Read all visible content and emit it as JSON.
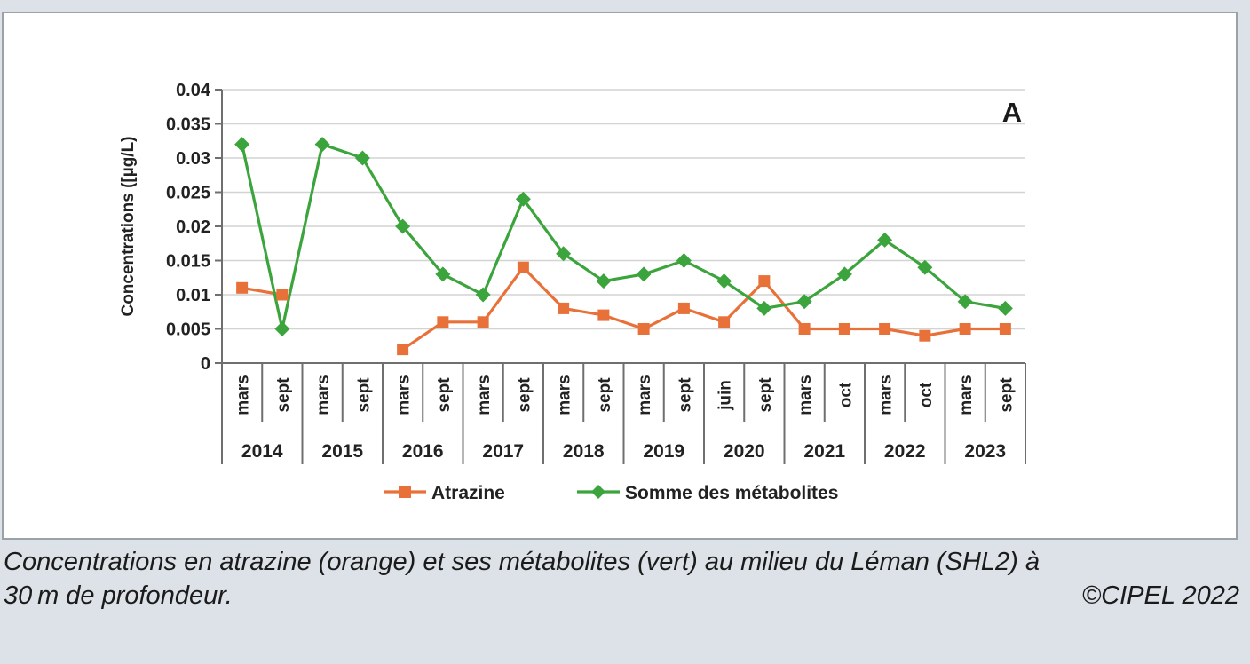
{
  "page": {
    "background": "#dce2e7",
    "panel_background": "#ffffff",
    "panel_border": "#9aa1a7"
  },
  "chart_data": {
    "type": "line",
    "panel_label": "A",
    "ylabel": "Concentrations ([µg/L)",
    "ylim": [
      0,
      0.04
    ],
    "ytick_step": 0.005,
    "ytick_labels": [
      "0",
      "0.005",
      "0.01",
      "0.015",
      "0.02",
      "0.025",
      "0.03",
      "0.035",
      "0.04"
    ],
    "grid": true,
    "legend_position": "bottom",
    "years": [
      {
        "label": "2014",
        "months": [
          "mars",
          "sept"
        ]
      },
      {
        "label": "2015",
        "months": [
          "mars",
          "sept"
        ]
      },
      {
        "label": "2016",
        "months": [
          "mars",
          "sept"
        ]
      },
      {
        "label": "2017",
        "months": [
          "mars",
          "sept"
        ]
      },
      {
        "label": "2018",
        "months": [
          "mars",
          "sept"
        ]
      },
      {
        "label": "2019",
        "months": [
          "mars",
          "sept"
        ]
      },
      {
        "label": "2020",
        "months": [
          "juin",
          "sept"
        ]
      },
      {
        "label": "2021",
        "months": [
          "mars",
          "oct"
        ]
      },
      {
        "label": "2022",
        "months": [
          "mars",
          "oct"
        ]
      },
      {
        "label": "2023",
        "months": [
          "mars",
          "sept"
        ]
      }
    ],
    "series": [
      {
        "name": "Atrazine",
        "color": "#e8713a",
        "marker": "square",
        "values": [
          0.011,
          0.01,
          null,
          null,
          0.002,
          0.006,
          0.006,
          0.014,
          0.008,
          0.007,
          0.005,
          0.008,
          0.006,
          0.012,
          0.005,
          0.005,
          0.005,
          0.004,
          0.005,
          0.005
        ]
      },
      {
        "name": "Somme des métabolites",
        "color": "#3ca43c",
        "marker": "diamond",
        "values": [
          0.032,
          0.005,
          0.032,
          0.03,
          0.02,
          0.013,
          0.01,
          0.024,
          0.016,
          0.012,
          0.013,
          0.015,
          0.012,
          0.008,
          0.009,
          0.013,
          0.018,
          0.014,
          0.009,
          0.008
        ]
      }
    ],
    "colors": {
      "gridline": "#d3d3d3",
      "axis": "#6f6f6f",
      "text": "#222222"
    }
  },
  "caption": {
    "line1": "Concentrations en atrazine (orange) et ses métabolites (vert) au milieu du Léman (SHL2) à",
    "line2": "30 m de profondeur.",
    "credit": "©CIPEL 2022"
  }
}
